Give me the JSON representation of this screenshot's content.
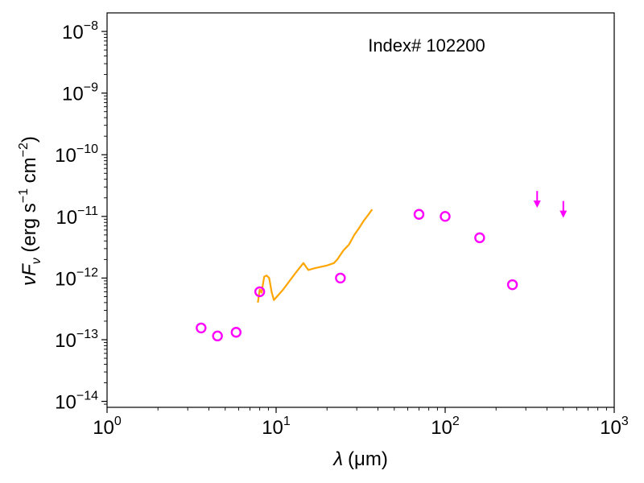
{
  "chart_data": {
    "type": "scatter",
    "title": "",
    "annotation": "Index# 102200",
    "xlabel": {
      "symbol": "λ",
      "unit": "(μm)"
    },
    "ylabel": {
      "prefix": "νF",
      "sub": "ν",
      "unit_open": " (erg s",
      "exp1": "−1",
      "unit_mid": " cm",
      "exp2": "−2",
      "unit_close": ")"
    },
    "xscale": "log",
    "yscale": "log",
    "xlim": [
      1,
      1000
    ],
    "ylim": [
      8e-15,
      2e-08
    ],
    "x_ticks": [
      {
        "value": 1,
        "base": "10",
        "exp": "0"
      },
      {
        "value": 10,
        "base": "10",
        "exp": "1"
      },
      {
        "value": 100,
        "base": "10",
        "exp": "2"
      },
      {
        "value": 1000,
        "base": "10",
        "exp": "3"
      }
    ],
    "y_ticks": [
      {
        "value": 1e-14,
        "base": "10",
        "exp": "−14"
      },
      {
        "value": 1e-13,
        "base": "10",
        "exp": "−13"
      },
      {
        "value": 1e-12,
        "base": "10",
        "exp": "−12"
      },
      {
        "value": 1e-11,
        "base": "10",
        "exp": "−11"
      },
      {
        "value": 1e-10,
        "base": "10",
        "exp": "−10"
      },
      {
        "value": 1e-09,
        "base": "10",
        "exp": "−9"
      },
      {
        "value": 1e-08,
        "base": "10",
        "exp": "−8"
      }
    ],
    "grid": false,
    "colors": {
      "photometry": "#ff00ff",
      "spectrum": "#ffa500"
    },
    "photometry": [
      {
        "x": 3.6,
        "y": 1.55e-13
      },
      {
        "x": 4.5,
        "y": 1.15e-13
      },
      {
        "x": 5.8,
        "y": 1.32e-13
      },
      {
        "x": 8.0,
        "y": 6e-13
      },
      {
        "x": 24,
        "y": 1e-12
      },
      {
        "x": 70,
        "y": 1.08e-11
      },
      {
        "x": 100,
        "y": 1e-11
      },
      {
        "x": 160,
        "y": 4.5e-12
      },
      {
        "x": 250,
        "y": 7.8e-13
      }
    ],
    "upper_limits": [
      {
        "x": 350,
        "y": 1.6e-11
      },
      {
        "x": 500,
        "y": 1.1e-11
      }
    ],
    "spectrum": [
      {
        "x": 7.8,
        "y": 4e-13
      },
      {
        "x": 8.0,
        "y": 6.5e-13
      },
      {
        "x": 8.2,
        "y": 5.8e-13
      },
      {
        "x": 8.5,
        "y": 1.05e-12
      },
      {
        "x": 8.8,
        "y": 1.1e-12
      },
      {
        "x": 9.1,
        "y": 1e-12
      },
      {
        "x": 9.4,
        "y": 6e-13
      },
      {
        "x": 9.7,
        "y": 4.4e-13
      },
      {
        "x": 11,
        "y": 6.5e-13
      },
      {
        "x": 13,
        "y": 1.2e-12
      },
      {
        "x": 14.5,
        "y": 1.75e-12
      },
      {
        "x": 15.5,
        "y": 1.35e-12
      },
      {
        "x": 17,
        "y": 1.45e-12
      },
      {
        "x": 20,
        "y": 1.6e-12
      },
      {
        "x": 22,
        "y": 1.75e-12
      },
      {
        "x": 23,
        "y": 2e-12
      },
      {
        "x": 25,
        "y": 2.8e-12
      },
      {
        "x": 27,
        "y": 3.5e-12
      },
      {
        "x": 29,
        "y": 5e-12
      },
      {
        "x": 31,
        "y": 6.5e-12
      },
      {
        "x": 33,
        "y": 8.5e-12
      },
      {
        "x": 35,
        "y": 1.05e-11
      },
      {
        "x": 37,
        "y": 1.3e-11
      }
    ]
  }
}
